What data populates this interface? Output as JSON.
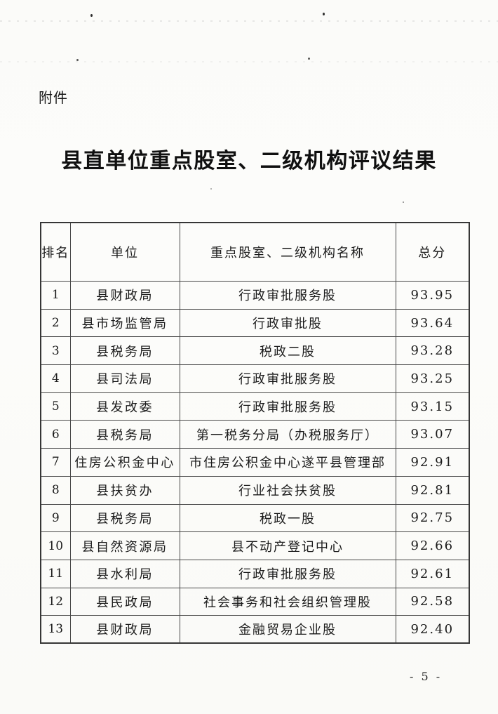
{
  "page": {
    "attachment_label": "附件",
    "title": "县直单位重点股室、二级机构评议结果",
    "page_number": "- 5 -"
  },
  "table": {
    "headers": [
      "排名",
      "单位",
      "重点股室、二级机构名称",
      "总分"
    ],
    "rows": [
      {
        "rank": "1",
        "unit": "县财政局",
        "name": "行政审批服务股",
        "score": "93.95"
      },
      {
        "rank": "2",
        "unit": "县市场监管局",
        "name": "行政审批股",
        "score": "93.64"
      },
      {
        "rank": "3",
        "unit": "县税务局",
        "name": "税政二股",
        "score": "93.28"
      },
      {
        "rank": "4",
        "unit": "县司法局",
        "name": "行政审批服务股",
        "score": "93.25"
      },
      {
        "rank": "5",
        "unit": "县发改委",
        "name": "行政审批服务股",
        "score": "93.15"
      },
      {
        "rank": "6",
        "unit": "县税务局",
        "name": "第一税务分局（办税服务厅）",
        "score": "93.07"
      },
      {
        "rank": "7",
        "unit": "住房公积金中心",
        "name": "市住房公积金中心遂平县管理部",
        "score": "92.91"
      },
      {
        "rank": "8",
        "unit": "县扶贫办",
        "name": "行业社会扶贫股",
        "score": "92.81"
      },
      {
        "rank": "9",
        "unit": "县税务局",
        "name": "税政一股",
        "score": "92.75"
      },
      {
        "rank": "10",
        "unit": "县自然资源局",
        "name": "县不动产登记中心",
        "score": "92.66"
      },
      {
        "rank": "11",
        "unit": "县水利局",
        "name": "行政审批服务股",
        "score": "92.61"
      },
      {
        "rank": "12",
        "unit": "县民政局",
        "name": "社会事务和社会组织管理股",
        "score": "92.58"
      },
      {
        "rank": "13",
        "unit": "县财政局",
        "name": "金融贸易企业股",
        "score": "92.40"
      }
    ]
  }
}
